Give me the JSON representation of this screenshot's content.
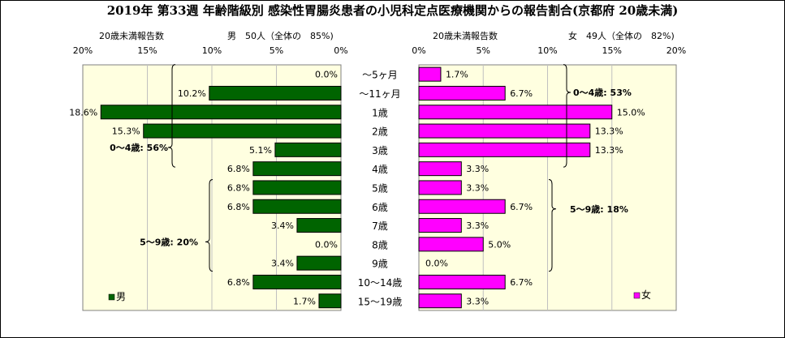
{
  "title": "2019年 第33週 年齢階級別 感染性胃腸炎患者の小児科定点医療機関からの報告割合(京都府 20歳未満)",
  "left_header": {
    "label": "20歳未満報告数",
    "summary": "男　50人（全体の　85%)"
  },
  "right_header": {
    "label": "20歳未満報告数",
    "summary": "女　49人（全体の　82%)"
  },
  "chart_data": {
    "type": "bar",
    "categories": [
      "～5ヶ月",
      "～11ヶ月",
      "1歳",
      "2歳",
      "3歳",
      "4歳",
      "5歳",
      "6歳",
      "7歳",
      "8歳",
      "9歳",
      "10～14歳",
      "15～19歳"
    ],
    "series": [
      {
        "name": "男",
        "values": [
          0.0,
          10.2,
          18.6,
          15.3,
          5.1,
          6.8,
          6.8,
          6.8,
          3.4,
          0.0,
          3.4,
          6.8,
          1.7
        ],
        "labels": [
          "0.0%",
          "10.2%",
          "18.6%",
          "15.3%",
          "5.1%",
          "6.8%",
          "6.8%",
          "6.8%",
          "3.4%",
          "0.0%",
          "3.4%",
          "6.8%",
          "1.7%"
        ],
        "color": "#006400"
      },
      {
        "name": "女",
        "values": [
          1.7,
          6.7,
          15.0,
          13.3,
          13.3,
          3.3,
          3.3,
          6.7,
          3.3,
          5.0,
          0.0,
          6.7,
          3.3
        ],
        "labels": [
          "1.7%",
          "6.7%",
          "15.0%",
          "13.3%",
          "13.3%",
          "3.3%",
          "3.3%",
          "6.7%",
          "3.3%",
          "5.0%",
          "0.0%",
          "6.7%",
          "3.3%"
        ],
        "color": "#ff00ff"
      }
    ],
    "xlim": [
      0,
      20
    ],
    "left_ticks": [
      "20%",
      "15%",
      "10%",
      "5%",
      "0%"
    ],
    "right_ticks": [
      "0%",
      "5%",
      "10%",
      "15%",
      "20%"
    ],
    "plot_background": "#ffffe0",
    "male_annotations": [
      "0～4歳: 56%",
      "5～9歳: 20%"
    ],
    "female_annotations": [
      "0～4歳: 53%",
      "5～9歳: 18%"
    ],
    "legend": {
      "male": "男",
      "female": "女"
    }
  }
}
